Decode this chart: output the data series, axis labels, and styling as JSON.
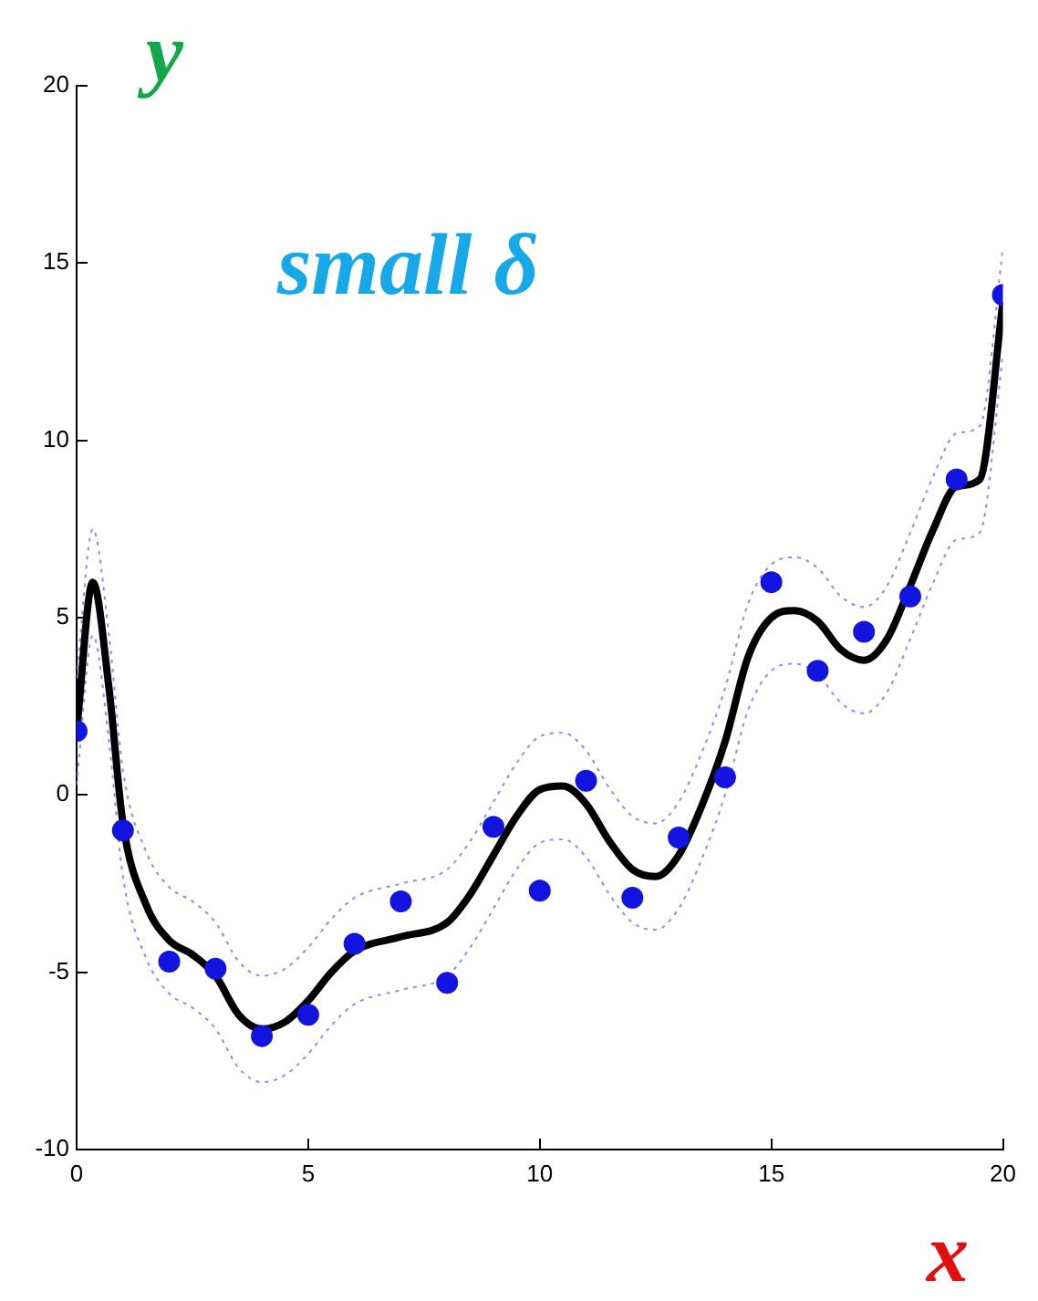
{
  "chart_data": {
    "type": "scatter",
    "title": "small δ",
    "xlabel": "x",
    "ylabel": "y",
    "xlim": [
      0,
      20
    ],
    "ylim": [
      -10,
      20
    ],
    "xticks": [
      0,
      5,
      10,
      15,
      20
    ],
    "yticks": [
      -10,
      -5,
      0,
      5,
      10,
      15,
      20
    ],
    "grid": false,
    "legend": false,
    "marker": "circle",
    "series": [
      {
        "color": "#1414e0",
        "x": [
          0,
          1,
          2,
          3,
          4,
          5,
          6,
          7,
          8,
          9,
          10,
          11,
          12,
          13,
          14,
          15,
          16,
          17,
          18,
          19,
          20
        ],
        "values": [
          1.8,
          -1.0,
          -4.7,
          -4.9,
          -6.8,
          -6.2,
          -4.2,
          -3.0,
          -5.3,
          -0.9,
          -2.7,
          0.4,
          -2.9,
          -1.2,
          0.5,
          6.0,
          3.5,
          4.6,
          5.6,
          8.9,
          14.1
        ]
      },
      {
        "type": "line",
        "color": "#000000",
        "marker": "none",
        "line_style": "solid",
        "x": [
          0,
          0.35,
          0.7,
          1,
          1.5,
          2,
          2.5,
          3,
          3.5,
          4,
          4.5,
          5,
          5.5,
          6,
          7,
          8,
          8.5,
          9,
          9.5,
          10,
          10.5,
          11,
          11.5,
          12,
          12.5,
          13,
          13.5,
          14,
          14.5,
          15,
          15.5,
          16,
          16.5,
          17,
          17.5,
          18,
          18.5,
          19,
          19.5,
          20
        ],
        "values": [
          1.8,
          6.0,
          3.0,
          -0.8,
          -3.1,
          -4.1,
          -4.5,
          -5.1,
          -6.2,
          -6.6,
          -6.4,
          -5.8,
          -5.0,
          -4.4,
          -4.0,
          -3.6,
          -2.8,
          -1.7,
          -0.6,
          0.15,
          0.25,
          -0.25,
          -1.3,
          -2.1,
          -2.3,
          -1.7,
          -0.3,
          1.5,
          3.9,
          5.0,
          5.2,
          4.9,
          4.1,
          3.8,
          4.4,
          5.9,
          7.5,
          8.7,
          8.9,
          13.9
        ]
      },
      {
        "type": "line",
        "color": "#8a8ef0",
        "marker": "none",
        "line_style": "dotted",
        "x": [
          0,
          0.35,
          0.7,
          1,
          1.5,
          2,
          2.5,
          3,
          3.5,
          4,
          4.5,
          5,
          5.5,
          6,
          7,
          8,
          8.5,
          9,
          9.5,
          10,
          10.5,
          11,
          11.5,
          12,
          12.5,
          13,
          13.5,
          14,
          14.5,
          15,
          15.5,
          16,
          16.5,
          17,
          17.5,
          18,
          18.5,
          19,
          19.5,
          20
        ],
        "values": [
          0.3,
          4.5,
          1.5,
          -2.3,
          -4.6,
          -5.6,
          -6.0,
          -6.6,
          -7.7,
          -8.1,
          -7.9,
          -7.3,
          -6.5,
          -5.9,
          -5.5,
          -5.1,
          -4.3,
          -3.2,
          -2.1,
          -1.35,
          -1.25,
          -1.75,
          -2.8,
          -3.6,
          -3.8,
          -3.2,
          -1.8,
          0.0,
          2.4,
          3.5,
          3.7,
          3.4,
          2.6,
          2.3,
          2.9,
          4.4,
          6.0,
          7.2,
          7.4,
          12.4
        ]
      },
      {
        "type": "line",
        "color": "#8a8ef0",
        "marker": "none",
        "line_style": "dotted",
        "x": [
          0,
          0.35,
          0.7,
          1,
          1.5,
          2,
          2.5,
          3,
          3.5,
          4,
          4.5,
          5,
          5.5,
          6,
          7,
          8,
          8.5,
          9,
          9.5,
          10,
          10.5,
          11,
          11.5,
          12,
          12.5,
          13,
          13.5,
          14,
          14.5,
          15,
          15.5,
          16,
          16.5,
          17,
          17.5,
          18,
          18.5,
          19,
          19.5,
          20
        ],
        "values": [
          3.3,
          7.5,
          4.5,
          0.7,
          -1.6,
          -2.6,
          -3.0,
          -3.6,
          -4.7,
          -5.1,
          -4.9,
          -4.3,
          -3.5,
          -2.9,
          -2.5,
          -2.1,
          -1.3,
          -0.2,
          0.9,
          1.65,
          1.75,
          1.25,
          0.2,
          -0.6,
          -0.8,
          -0.2,
          1.2,
          3.0,
          5.4,
          6.5,
          6.7,
          6.4,
          5.6,
          5.3,
          5.9,
          7.4,
          9.0,
          10.2,
          10.4,
          15.4
        ]
      }
    ]
  }
}
